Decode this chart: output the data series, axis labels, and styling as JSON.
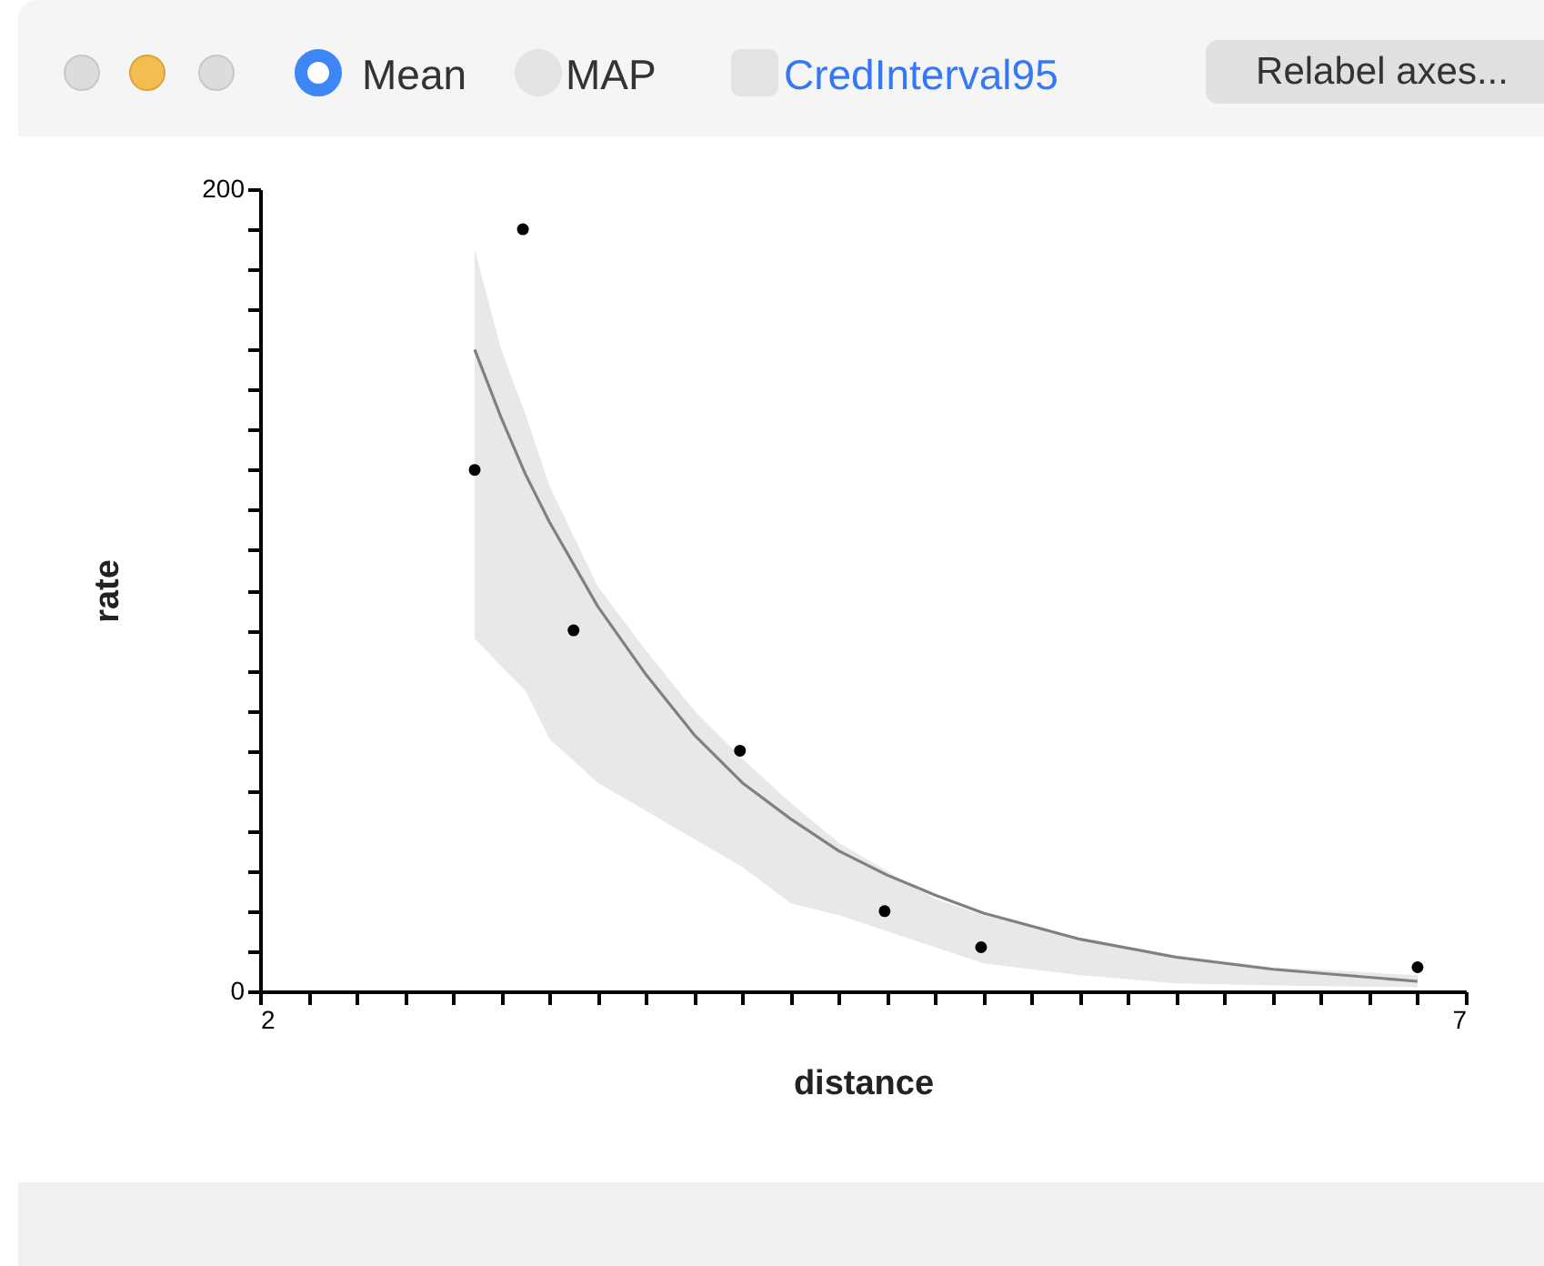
{
  "chart_data": {
    "type": "line",
    "xlabel": "distance",
    "ylabel": "rate",
    "annotations": [
      "Mean",
      "MAP",
      "CredInterval95",
      "Relabel axes..."
    ],
    "xlim": [
      2,
      7
    ],
    "ylim": [
      0,
      200
    ],
    "xticks": [
      2,
      {
        "value": 2.2,
        "label": null
      },
      {
        "value": 2.4,
        "label": null
      },
      {
        "value": 2.6,
        "label": null
      },
      {
        "value": 2.8,
        "label": null
      },
      {
        "value": 3,
        "label": null
      },
      {
        "value": 3.2,
        "label": null
      },
      {
        "value": 3.4,
        "label": null
      },
      {
        "value": 3.6,
        "label": null
      },
      {
        "value": 3.8,
        "label": null
      },
      {
        "value": 4,
        "label": null
      },
      {
        "value": 4.2,
        "label": null
      },
      {
        "value": 4.4,
        "label": null
      },
      {
        "value": 4.6,
        "label": null
      },
      {
        "value": 4.8,
        "label": null
      },
      {
        "value": 5,
        "label": null
      },
      {
        "value": 5.2,
        "label": null
      },
      {
        "value": 5.4,
        "label": null
      },
      {
        "value": 5.6,
        "label": null
      },
      {
        "value": 5.8,
        "label": null
      },
      {
        "value": 6,
        "label": null
      },
      {
        "value": 6.2,
        "label": null
      },
      {
        "value": 6.4,
        "label": null
      },
      {
        "value": 6.6,
        "label": null
      },
      {
        "value": 6.8,
        "label": null
      },
      7
    ],
    "yticks": [
      0,
      {
        "value": 10,
        "label": null
      },
      {
        "value": 20,
        "label": null
      },
      {
        "value": 30,
        "label": null
      },
      {
        "value": 40,
        "label": null
      },
      {
        "value": 50,
        "label": null
      },
      {
        "value": 60,
        "label": null
      },
      {
        "value": 70,
        "label": null
      },
      {
        "value": 80,
        "label": null
      },
      {
        "value": 90,
        "label": null
      },
      {
        "value": 100,
        "label": null
      },
      {
        "value": 110,
        "label": null
      },
      {
        "value": 120,
        "label": null
      },
      {
        "value": 130,
        "label": null
      },
      {
        "value": 140,
        "label": null
      },
      {
        "value": 150,
        "label": null
      },
      {
        "value": 160,
        "label": null
      },
      {
        "value": 170,
        "label": null
      },
      {
        "value": 180,
        "label": null
      },
      {
        "value": 190,
        "label": null
      },
      200
    ],
    "series": [
      {
        "type": "line",
        "color": "#808080",
        "x": [
          2.89,
          3.0,
          3.1,
          3.2,
          3.4,
          3.6,
          3.8,
          4.0,
          4.2,
          4.4,
          4.6,
          4.8,
          5.0,
          5.4,
          5.8,
          6.2,
          6.8
        ],
        "values": [
          160,
          143,
          129,
          117,
          96,
          79,
          64,
          52,
          43,
          35,
          29,
          24,
          19.5,
          13,
          8.5,
          5.5,
          2.5
        ],
        "lower": [
          88,
          81,
          75,
          63,
          52,
          45,
          38,
          31,
          22,
          19,
          15,
          11,
          7,
          4,
          2,
          1.5,
          1
        ],
        "upper": [
          185,
          160,
          144,
          126,
          101,
          85,
          70,
          58,
          47,
          37,
          30,
          23,
          19,
          13,
          9,
          6,
          4
        ]
      },
      {
        "type": "scatter",
        "color": "#000000",
        "marker": "circle",
        "x": [
          2.89,
          3.09,
          3.3,
          3.99,
          4.59,
          4.99,
          6.8
        ],
        "values": [
          130,
          190,
          90,
          60,
          20,
          11,
          6
        ]
      }
    ]
  }
}
